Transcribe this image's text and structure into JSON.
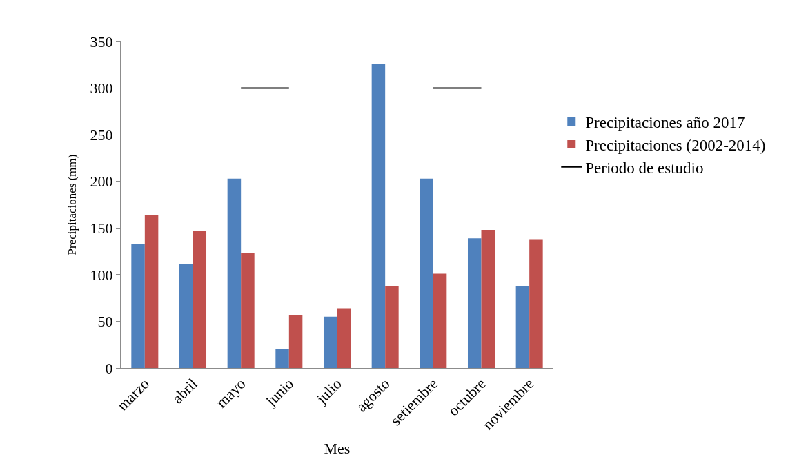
{
  "chart_data": {
    "type": "bar",
    "xlabel": "Mes",
    "ylabel": "Precipitaciones (mm)",
    "categories": [
      "marzo",
      "abril",
      "mayo",
      "junio",
      "julio",
      "agosto",
      "setiembre",
      "octubre",
      "noviembre"
    ],
    "series": [
      {
        "name": "Precipitaciones año 2017",
        "color": "#4f81bd",
        "values": [
          133,
          111,
          203,
          20,
          55,
          326,
          203,
          139,
          88
        ]
      },
      {
        "name": "Precipitaciones (2002-2014)",
        "color": "#c0504d",
        "values": [
          164,
          147,
          123,
          57,
          64,
          88,
          101,
          148,
          138
        ]
      },
      {
        "name": "Periodo de estudio",
        "type": "line",
        "color": "#000000",
        "values": [
          null,
          null,
          300,
          300,
          null,
          null,
          300,
          300,
          null
        ]
      }
    ],
    "ylim": [
      0,
      350
    ],
    "yticks": [
      0,
      50,
      100,
      150,
      200,
      250,
      300,
      350
    ],
    "legend": "right",
    "marker": "none"
  }
}
